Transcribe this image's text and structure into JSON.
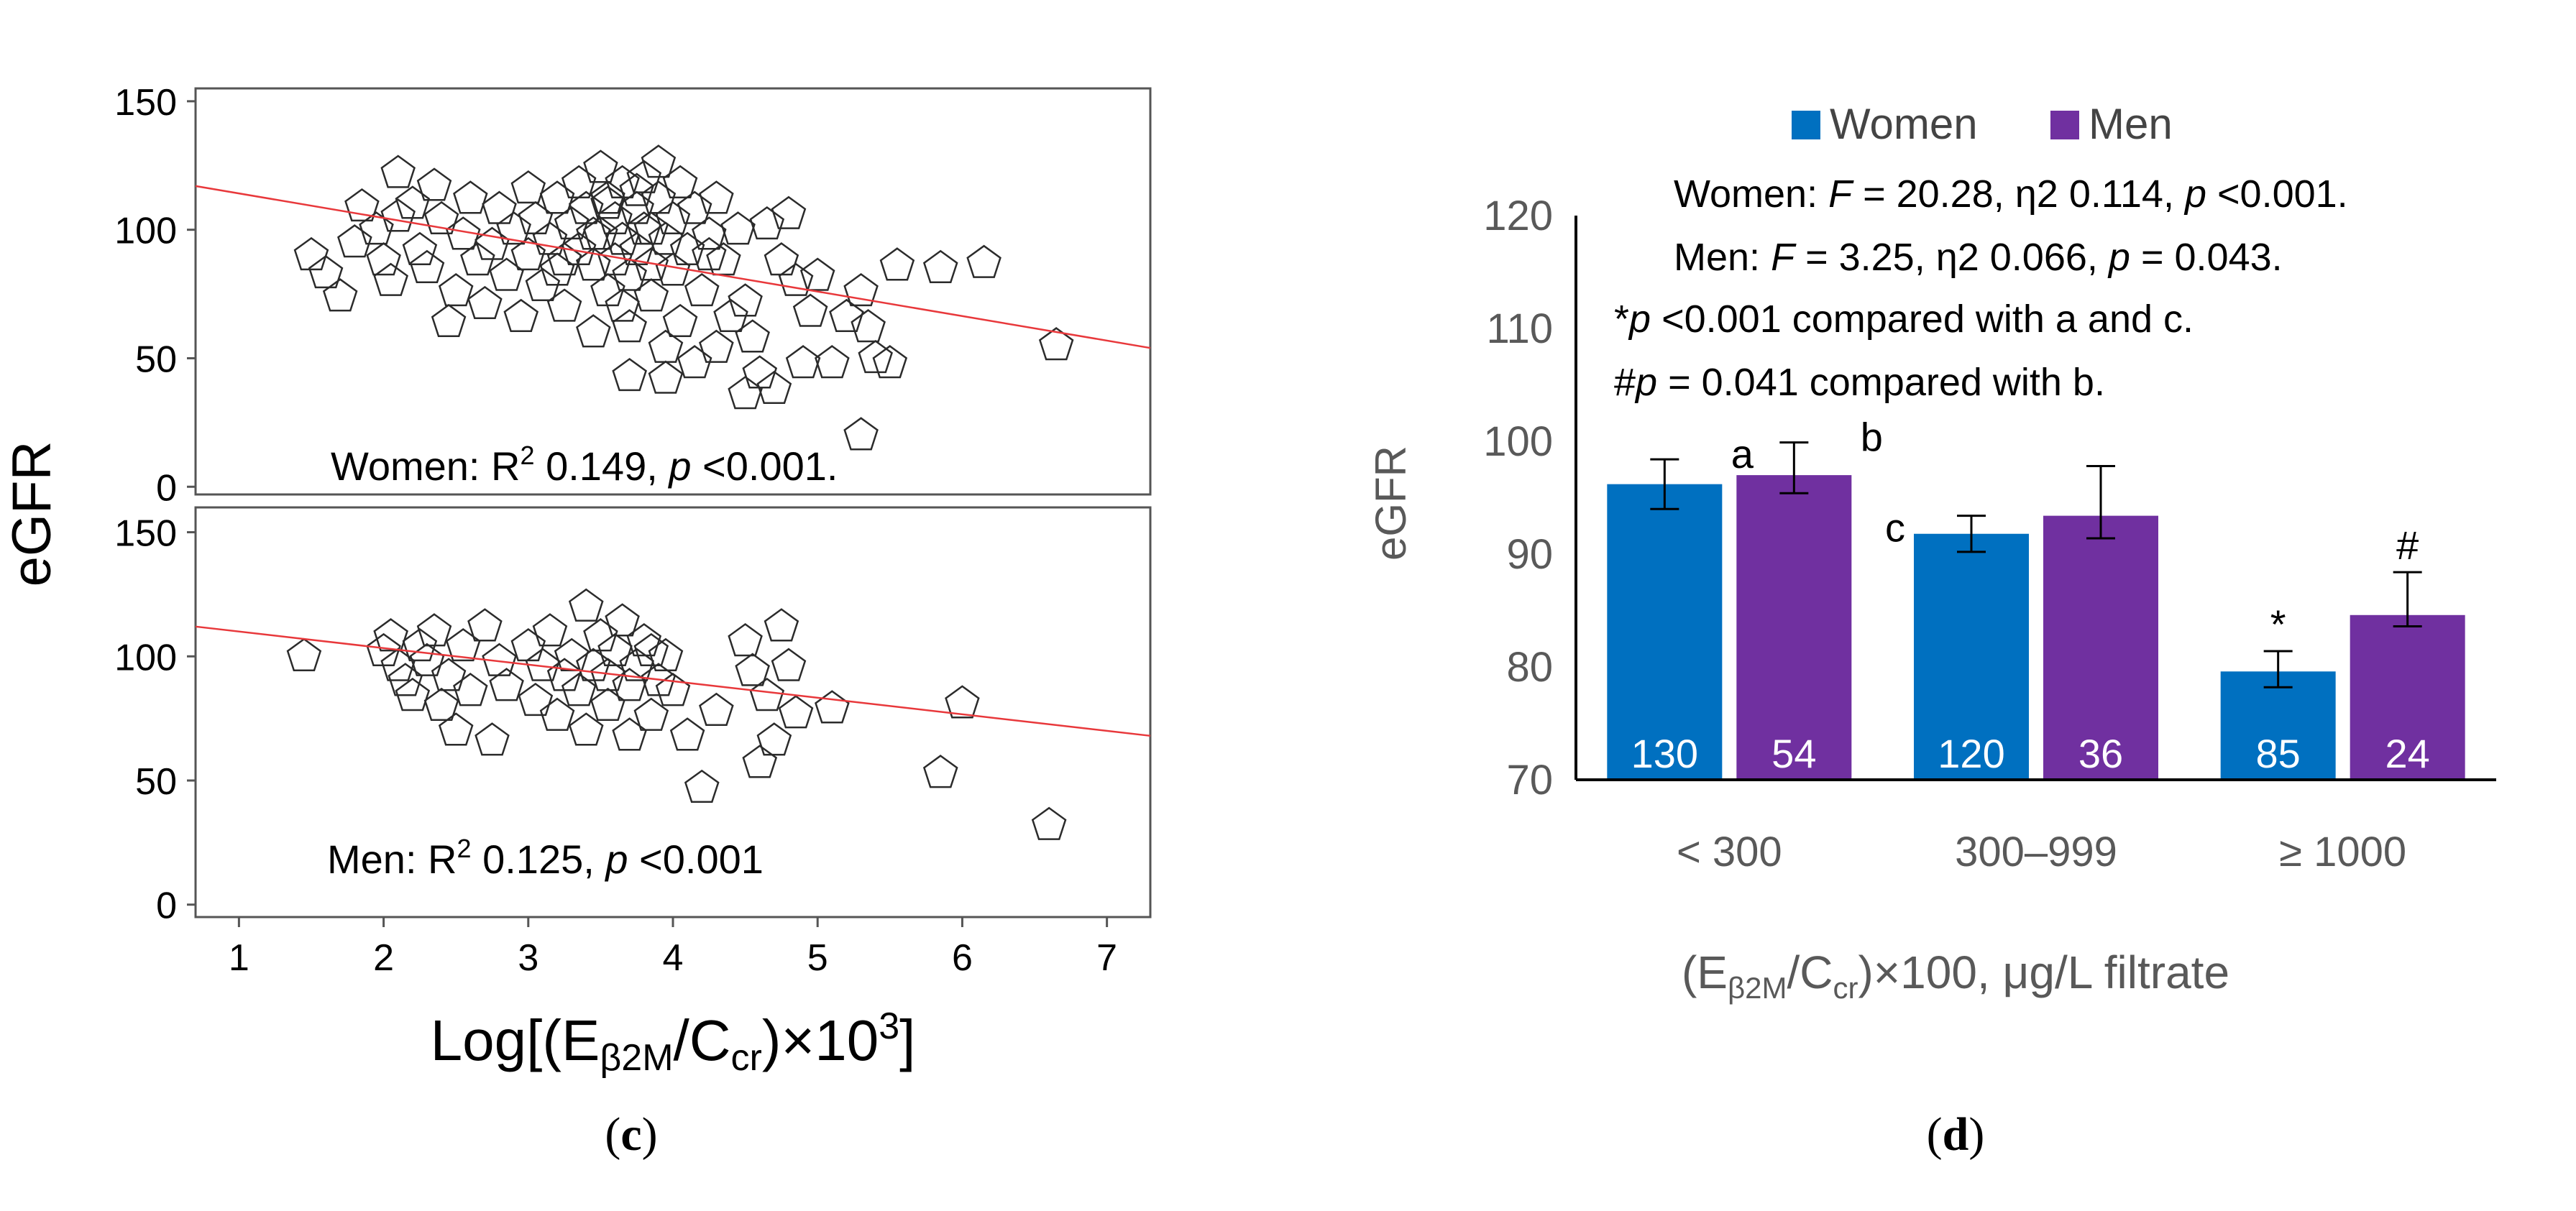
{
  "chart_data": [
    {
      "type": "scatter",
      "panel_label": "c",
      "ylabel": "eGFR",
      "xlabel_main": "Log[(E",
      "xlabel_sub": "β2M",
      "xlabel_mid": "/C",
      "xlabel_sub2": "cr",
      "xlabel_end": ")×10",
      "xlabel_sup": "3",
      "xlabel_close": "]",
      "xlim": [
        0.7,
        7.3
      ],
      "xticks": [
        "1",
        "2",
        "3",
        "4",
        "5",
        "6",
        "7"
      ],
      "xtick_values": [
        1,
        2,
        3,
        4,
        5,
        6,
        7
      ],
      "marker": "pentagon",
      "panels": [
        {
          "name": "Women",
          "annotation_prefix": "Women: R",
          "annotation_sup": "2",
          "annotation_mid": " 0.149, ",
          "annotation_p": "p",
          "annotation_end": " <0.001.",
          "ylim": [
            -3,
            155
          ],
          "yticks": [
            "0",
            "50",
            "100",
            "150"
          ],
          "ytick_values": [
            0,
            50,
            100,
            150
          ],
          "regression": {
            "x": [
              0.7,
              7.3
            ],
            "y": [
              117,
              54
            ]
          },
          "points": [
            [
              1.5,
              90
            ],
            [
              1.6,
              83
            ],
            [
              1.7,
              74
            ],
            [
              1.8,
              95
            ],
            [
              1.85,
              109
            ],
            [
              1.95,
              100
            ],
            [
              2.0,
              88
            ],
            [
              2.05,
              80
            ],
            [
              2.1,
              105
            ],
            [
              2.1,
              122
            ],
            [
              2.2,
              110
            ],
            [
              2.25,
              92
            ],
            [
              2.3,
              85
            ],
            [
              2.35,
              117
            ],
            [
              2.4,
              104
            ],
            [
              2.45,
              64
            ],
            [
              2.5,
              76
            ],
            [
              2.55,
              98
            ],
            [
              2.6,
              112
            ],
            [
              2.65,
              88
            ],
            [
              2.7,
              71
            ],
            [
              2.75,
              94
            ],
            [
              2.8,
              108
            ],
            [
              2.85,
              82
            ],
            [
              2.9,
              100
            ],
            [
              2.95,
              66
            ],
            [
              3.0,
              116
            ],
            [
              3.0,
              90
            ],
            [
              3.05,
              104
            ],
            [
              3.1,
              78
            ],
            [
              3.15,
              96
            ],
            [
              3.2,
              112
            ],
            [
              3.2,
              84
            ],
            [
              3.25,
              70
            ],
            [
              3.3,
              102
            ],
            [
              3.35,
              92
            ],
            [
              3.35,
              118
            ],
            [
              3.4,
              108
            ],
            [
              3.45,
              86
            ],
            [
              3.45,
              60
            ],
            [
              3.5,
              98
            ],
            [
              3.5,
              124
            ],
            [
              3.55,
              112
            ],
            [
              3.55,
              76
            ],
            [
              3.6,
              104
            ],
            [
              3.6,
              88
            ],
            [
              3.65,
              118
            ],
            [
              3.65,
              96
            ],
            [
              3.7,
              82
            ],
            [
              3.7,
              62
            ],
            [
              3.75,
              108
            ],
            [
              3.75,
              92
            ],
            [
              3.8,
              100
            ],
            [
              3.8,
              120
            ],
            [
              3.85,
              86
            ],
            [
              3.85,
              74
            ],
            [
              3.9,
              112
            ],
            [
              3.9,
              126
            ],
            [
              3.95,
              96
            ],
            [
              3.95,
              54
            ],
            [
              4.0,
              104
            ],
            [
              4.0,
              84
            ],
            [
              4.05,
              118
            ],
            [
              4.05,
              64
            ],
            [
              4.1,
              92
            ],
            [
              4.15,
              108
            ],
            [
              4.2,
              76
            ],
            [
              4.25,
              98
            ],
            [
              4.3,
              112
            ],
            [
              4.3,
              54
            ],
            [
              4.35,
              88
            ],
            [
              4.4,
              66
            ],
            [
              4.45,
              100
            ],
            [
              4.5,
              72
            ],
            [
              4.5,
              36
            ],
            [
              4.55,
              58
            ],
            [
              4.6,
              44
            ],
            [
              4.65,
              102
            ],
            [
              4.7,
              38
            ],
            [
              4.75,
              88
            ],
            [
              4.8,
              106
            ],
            [
              4.85,
              80
            ],
            [
              4.9,
              48
            ],
            [
              4.95,
              68
            ],
            [
              5.0,
              82
            ],
            [
              5.1,
              48
            ],
            [
              5.2,
              66
            ],
            [
              5.3,
              20
            ],
            [
              5.3,
              76
            ],
            [
              5.35,
              62
            ],
            [
              5.4,
              50
            ],
            [
              5.5,
              48
            ],
            [
              5.55,
              86
            ],
            [
              5.85,
              85
            ],
            [
              6.15,
              87
            ],
            [
              6.65,
              55
            ],
            [
              3.7,
              43
            ],
            [
              3.95,
              42
            ],
            [
              4.15,
              48
            ],
            [
              3.55,
              110
            ],
            [
              3.75,
              115
            ],
            [
              3.85,
              100
            ],
            [
              3.65,
              70
            ],
            [
              4.25,
              90
            ],
            [
              3.45,
              98
            ],
            [
              3.25,
              88
            ]
          ]
        },
        {
          "name": "Men",
          "annotation_prefix": "Men: R",
          "annotation_sup": "2",
          "annotation_mid": " 0.125, ",
          "annotation_p": "p",
          "annotation_end": " <0.001",
          "ylim": [
            -5,
            160
          ],
          "yticks": [
            "0",
            "50",
            "100",
            "150"
          ],
          "ytick_values": [
            0,
            50,
            100,
            150
          ],
          "regression": {
            "x": [
              0.7,
              7.3
            ],
            "y": [
              112,
              68
            ]
          },
          "points": [
            [
              1.45,
              100
            ],
            [
              2.0,
              102
            ],
            [
              2.05,
              108
            ],
            [
              2.1,
              96
            ],
            [
              2.15,
              90
            ],
            [
              2.2,
              84
            ],
            [
              2.25,
              104
            ],
            [
              2.3,
              98
            ],
            [
              2.35,
              110
            ],
            [
              2.4,
              80
            ],
            [
              2.45,
              92
            ],
            [
              2.5,
              70
            ],
            [
              2.55,
              104
            ],
            [
              2.6,
              86
            ],
            [
              2.7,
              112
            ],
            [
              2.75,
              66
            ],
            [
              2.8,
              98
            ],
            [
              2.85,
              88
            ],
            [
              3.0,
              104
            ],
            [
              3.05,
              82
            ],
            [
              3.1,
              96
            ],
            [
              3.15,
              110
            ],
            [
              3.2,
              76
            ],
            [
              3.25,
              92
            ],
            [
              3.3,
              100
            ],
            [
              3.35,
              86
            ],
            [
              3.4,
              70
            ],
            [
              3.4,
              120
            ],
            [
              3.45,
              96
            ],
            [
              3.5,
              108
            ],
            [
              3.55,
              80
            ],
            [
              3.55,
              92
            ],
            [
              3.6,
              102
            ],
            [
              3.65,
              114
            ],
            [
              3.7,
              68
            ],
            [
              3.7,
              88
            ],
            [
              3.75,
              96
            ],
            [
              3.8,
              106
            ],
            [
              3.85,
              76
            ],
            [
              3.85,
              102
            ],
            [
              3.9,
              90
            ],
            [
              3.95,
              100
            ],
            [
              4.0,
              86
            ],
            [
              4.1,
              68
            ],
            [
              4.2,
              47
            ],
            [
              4.3,
              78
            ],
            [
              4.5,
              106
            ],
            [
              4.55,
              94
            ],
            [
              4.6,
              57
            ],
            [
              4.65,
              84
            ],
            [
              4.7,
              66
            ],
            [
              4.75,
              112
            ],
            [
              4.8,
              96
            ],
            [
              4.85,
              77
            ],
            [
              5.1,
              79
            ],
            [
              5.85,
              53
            ],
            [
              6.0,
              81
            ],
            [
              6.6,
              32
            ]
          ]
        }
      ]
    },
    {
      "type": "bar",
      "panel_label": "d",
      "categories": [
        "< 300",
        "300–999",
        "≥ 1000"
      ],
      "series": [
        {
          "name": "Women",
          "color": "#0070c0",
          "values": [
            96.2,
            91.8,
            79.6
          ],
          "err_low": [
            2.2,
            1.6,
            1.4
          ],
          "err_high": [
            2.2,
            1.6,
            1.8
          ],
          "n": [
            "130",
            "120",
            "85"
          ],
          "markers": [
            "a",
            "c",
            "*"
          ]
        },
        {
          "name": "Men",
          "color": "#7030a0",
          "values": [
            97,
            93.4,
            84.6
          ],
          "err_low": [
            1.6,
            2.0,
            1.0
          ],
          "err_high": [
            2.9,
            4.4,
            3.8
          ],
          "n": [
            "54",
            "36",
            "24"
          ],
          "markers": [
            "b",
            "",
            "#"
          ]
        }
      ],
      "ylim": [
        70,
        120
      ],
      "yticks": [
        "70",
        "80",
        "90",
        "100",
        "110",
        "120"
      ],
      "ytick_values": [
        70,
        80,
        90,
        100,
        110,
        120
      ],
      "ylabel": "eGFR",
      "xlabel_a": "(E",
      "xlabel_sub": "β2M",
      "xlabel_b": "/C",
      "xlabel_sub2": "cr",
      "xlabel_c": ")×100, μg/L filtrate",
      "legend": [
        "Women",
        "Men"
      ],
      "annotations": [
        {
          "a": "Women: ",
          "i1": "F",
          "b": " = 20.28, η2 0.114, ",
          "i2": "p",
          "c": " <0.001."
        },
        {
          "a": "Men: ",
          "i1": "F",
          "b": " = 3.25, η2 0.066, ",
          "i2": "p",
          "c": " = 0.043."
        },
        {
          "a": "*",
          "i1": "p",
          "b": " <0.001 compared with a and c.",
          "i2": "",
          "c": ""
        },
        {
          "a": "#",
          "i1": "p",
          "b": " = 0.041 compared with b.",
          "i2": "",
          "c": ""
        }
      ]
    }
  ]
}
